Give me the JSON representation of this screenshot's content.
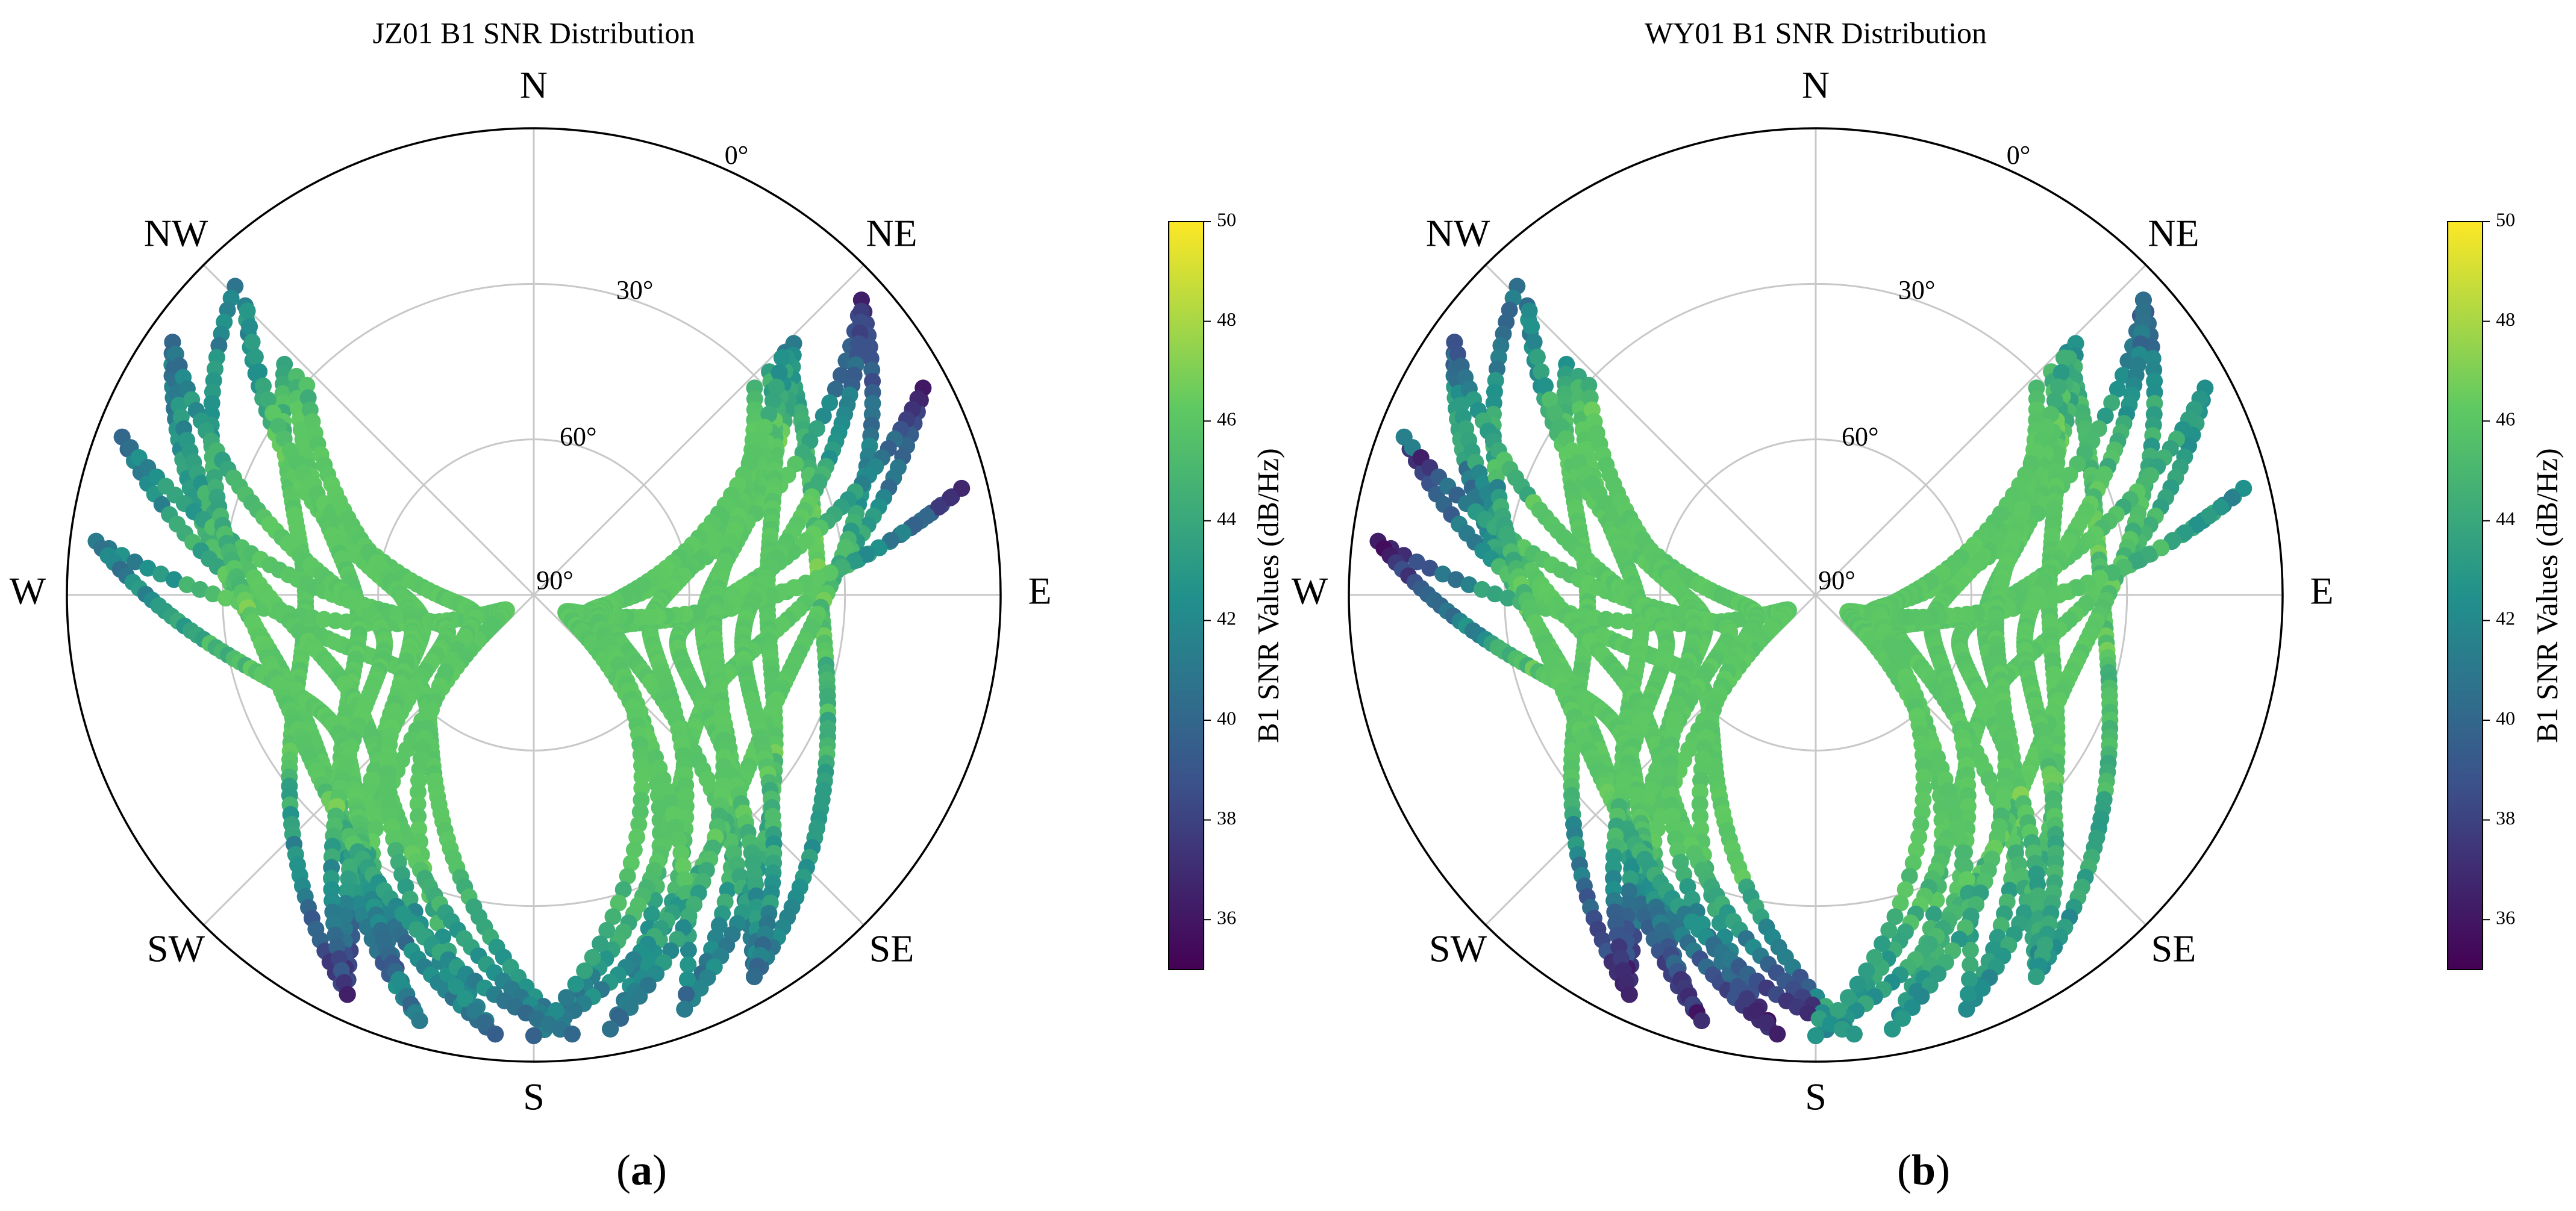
{
  "chart_data": [
    {
      "type": "scatter",
      "subtype": "polar-skyplot",
      "title": "JZ01  B1 SNR Distribution",
      "caption_letter": "a",
      "directions": [
        "N",
        "NE",
        "E",
        "SE",
        "S",
        "SW",
        "W",
        "NW"
      ],
      "elevation_labels": [
        "0°",
        "30°",
        "60°",
        "90°"
      ],
      "colorbar": {
        "label": "B1 SNR Values (dB/Hz)",
        "range": [
          35,
          50
        ],
        "ticks": [
          "36",
          "38",
          "40",
          "42",
          "44",
          "46",
          "48",
          "50"
        ],
        "colormap": "viridis",
        "colors": [
          "#440154",
          "#3b528b",
          "#21918c",
          "#5ec962",
          "#fde725"
        ]
      },
      "typical_snr_high_elevation": 46,
      "typical_snr_low_elevation_north": 36,
      "typical_snr_low_elevation_south": 40
    },
    {
      "type": "scatter",
      "subtype": "polar-skyplot",
      "title": "WY01  B1 SNR Distribution",
      "caption_letter": "b",
      "directions": [
        "N",
        "NE",
        "E",
        "SE",
        "S",
        "SW",
        "W",
        "NW"
      ],
      "elevation_labels": [
        "0°",
        "30°",
        "60°",
        "90°"
      ],
      "colorbar": {
        "label": "B1 SNR Values (dB/Hz)",
        "range": [
          35,
          50
        ],
        "ticks": [
          "36",
          "38",
          "40",
          "42",
          "44",
          "46",
          "48",
          "50"
        ],
        "colormap": "viridis",
        "colors": [
          "#440154",
          "#3b528b",
          "#21918c",
          "#5ec962",
          "#fde725"
        ]
      },
      "typical_snr_high_elevation": 46,
      "typical_snr_low_elevation_west": 35,
      "typical_snr_low_elevation_east": 42
    }
  ]
}
